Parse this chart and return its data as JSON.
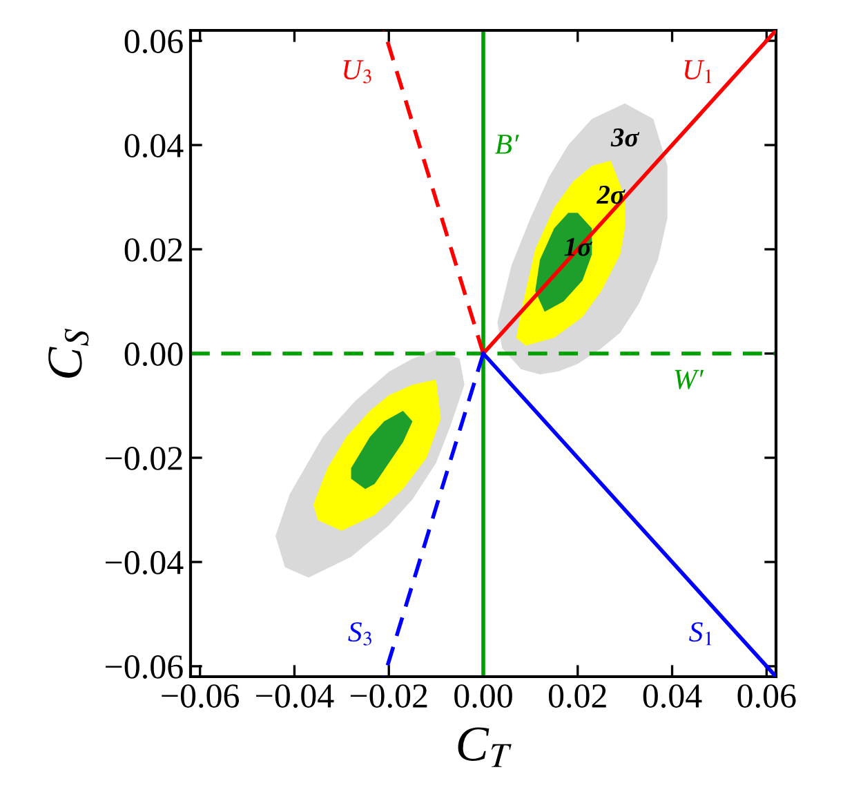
{
  "chart_data": {
    "type": "area",
    "xlabel": "C$_{T}$",
    "ylabel": "C$_{S}$",
    "xlim": [
      -0.062,
      0.062
    ],
    "ylim": [
      -0.062,
      0.062
    ],
    "xticks": [
      {
        "value": -0.06,
        "label": "−0.06"
      },
      {
        "value": -0.04,
        "label": "−0.04"
      },
      {
        "value": -0.02,
        "label": "−0.02"
      },
      {
        "value": 0,
        "label": "0.00"
      },
      {
        "value": 0.02,
        "label": "0.02"
      },
      {
        "value": 0.04,
        "label": "0.04"
      },
      {
        "value": 0.06,
        "label": "0.06"
      }
    ],
    "yticks": [
      {
        "value": -0.06,
        "label": "−0.06"
      },
      {
        "value": -0.04,
        "label": "−0.04"
      },
      {
        "value": -0.02,
        "label": "−0.02"
      },
      {
        "value": 0,
        "label": "0.00"
      },
      {
        "value": 0.02,
        "label": "0.02"
      },
      {
        "value": 0.04,
        "label": "0.04"
      },
      {
        "value": 0.06,
        "label": "0.06"
      }
    ],
    "grid": false,
    "legend": false,
    "series": [
      {
        "name": "3σ",
        "color": "#d9d9d9",
        "x": [
          0.03,
          0.036,
          0.039,
          0.039,
          0.037,
          0.033,
          0.029,
          0.025,
          0.02,
          0.016,
          0.012,
          0.008,
          0.004,
          0.003,
          0.006,
          0.01,
          0.014,
          0.018,
          0.023
        ],
        "values": [
          0.048,
          0.045,
          0.036,
          0.026,
          0.018,
          0.0096,
          0.004,
          0.001,
          -0.002,
          -0.0034,
          -0.004,
          -0.003,
          0.001,
          0.006,
          0.017,
          0.026,
          0.034,
          0.04,
          0.045
        ]
      },
      {
        "color": "#d9d9d9",
        "x": [
          -0.01,
          -0.005,
          -0.004,
          -0.007,
          -0.01,
          -0.015,
          -0.02,
          -0.028,
          -0.037,
          -0.042,
          -0.044,
          -0.041,
          -0.034,
          -0.027,
          -0.02,
          -0.015
        ],
        "values": [
          0.0007,
          -0.001,
          -0.006,
          -0.014,
          -0.021,
          -0.028,
          -0.033,
          -0.039,
          -0.043,
          -0.041,
          -0.035,
          -0.027,
          -0.016,
          -0.009,
          -0.0035,
          -0.001
        ]
      },
      {
        "name": "2σ",
        "color": "#ffff00",
        "x": [
          0.027,
          0.03,
          0.03,
          0.029,
          0.025,
          0.021,
          0.015,
          0.009,
          0.007,
          0.008,
          0.011,
          0.015,
          0.019,
          0.023
        ],
        "values": [
          0.037,
          0.03,
          0.024,
          0.019,
          0.012,
          0.007,
          0.003,
          0.0015,
          0.003,
          0.008,
          0.02,
          0.028,
          0.033,
          0.036
        ]
      },
      {
        "color": "#ffff00",
        "x": [
          -0.01,
          -0.009,
          -0.012,
          -0.017,
          -0.023,
          -0.03,
          -0.035,
          -0.036,
          -0.033,
          -0.029,
          -0.024,
          -0.02,
          -0.015
        ],
        "values": [
          -0.005,
          -0.0125,
          -0.02,
          -0.026,
          -0.031,
          -0.034,
          -0.032,
          -0.029,
          -0.022,
          -0.016,
          -0.011,
          -0.008,
          -0.006
        ]
      },
      {
        "name": "1σ",
        "color": "#1e9e2a",
        "x": [
          0.02,
          0.023,
          0.023,
          0.021,
          0.017,
          0.013,
          0.011,
          0.012,
          0.015,
          0.018
        ],
        "values": [
          0.027,
          0.024,
          0.019,
          0.014,
          0.01,
          0.008,
          0.012,
          0.018,
          0.024,
          0.027
        ]
      },
      {
        "color": "#1e9e2a",
        "x": [
          -0.017,
          -0.015,
          -0.017,
          -0.02,
          -0.023,
          -0.025,
          -0.028,
          -0.028,
          -0.026,
          -0.024,
          -0.021
        ],
        "values": [
          -0.011,
          -0.013,
          -0.017,
          -0.021,
          -0.025,
          -0.026,
          -0.024,
          -0.022,
          -0.019,
          -0.016,
          -0.013
        ]
      },
      {
        "type": "line",
        "name": "U$_{1}$",
        "color": "#ff0000",
        "line_style": "solid",
        "x": [
          0,
          0.062
        ],
        "values": [
          0,
          0.062
        ]
      },
      {
        "type": "line",
        "name": "U$_{3}$",
        "color": "#ff0000",
        "line_style": "dashed",
        "x": [
          0,
          -0.021
        ],
        "values": [
          0,
          0.062
        ]
      },
      {
        "type": "line",
        "name": "S$_{1}$",
        "color": "#0000ff",
        "line_style": "solid",
        "x": [
          0,
          0.062
        ],
        "values": [
          0,
          -0.062
        ]
      },
      {
        "type": "line",
        "name": "S$_{3}$",
        "color": "#0000ff",
        "line_style": "dashed",
        "x": [
          0,
          -0.021
        ],
        "values": [
          0,
          -0.062
        ]
      }
    ],
    "ref_lines": [
      {
        "axis": "x",
        "value": 0,
        "label": "B′",
        "color": "#00a000",
        "line_style": "solid"
      },
      {
        "axis": "y",
        "value": 0,
        "label": "W′",
        "color": "#00a000",
        "line_style": "dashed"
      }
    ]
  }
}
